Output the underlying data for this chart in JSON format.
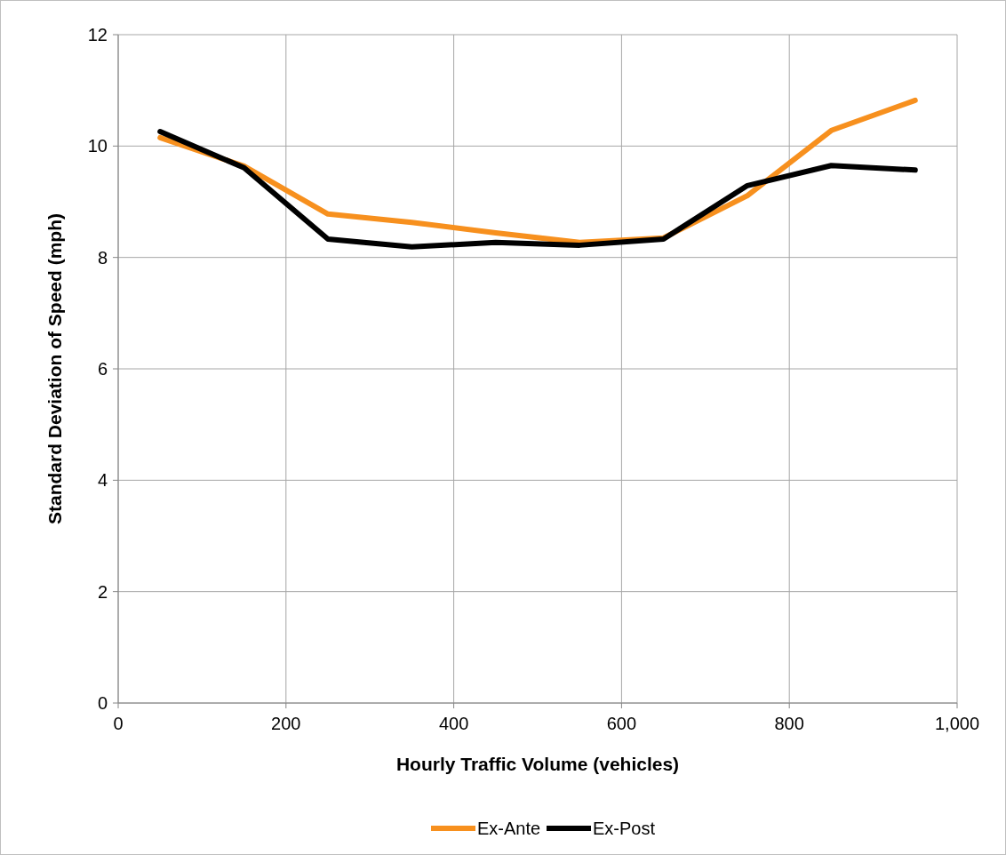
{
  "chart_data": {
    "type": "line",
    "xlabel": "Hourly Traffic Volume (vehicles)",
    "ylabel": "Standard Deviation of Speed (mph)",
    "x": [
      50,
      150,
      250,
      350,
      450,
      550,
      650,
      750,
      850,
      950
    ],
    "series": [
      {
        "name": "Ex-Ante",
        "color": "#f7901e",
        "values": [
          10.15,
          9.64,
          8.78,
          8.63,
          8.44,
          8.27,
          8.35,
          9.11,
          10.28,
          10.82
        ]
      },
      {
        "name": "Ex-Post",
        "color": "#000000",
        "values": [
          10.26,
          9.61,
          8.33,
          8.19,
          8.27,
          8.22,
          8.33,
          9.29,
          9.65,
          9.57
        ]
      }
    ],
    "xlim": [
      0,
      1000
    ],
    "xticks": [
      0,
      200,
      400,
      600,
      800,
      {
        "value": 1000,
        "label": "1,000"
      }
    ],
    "ylim": [
      0,
      12
    ],
    "yticks": [
      0,
      2,
      4,
      6,
      8,
      10,
      12
    ],
    "grid": true,
    "legend": "bottom",
    "marker": "none",
    "line_style": "solid"
  }
}
